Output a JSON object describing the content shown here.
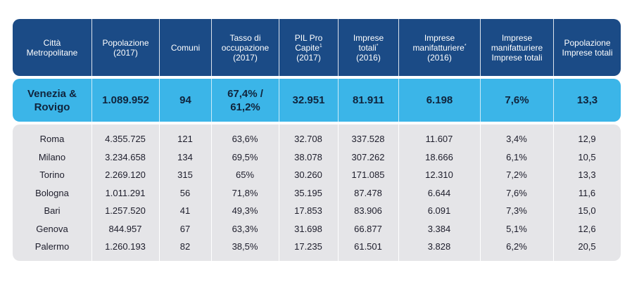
{
  "header": {
    "col1": [
      "Città",
      "Metropolitane"
    ],
    "col2": [
      "Popolazione",
      "(2017)"
    ],
    "col3": [
      "Comuni"
    ],
    "col4": [
      "Tasso di",
      "occupazione",
      "(2017)"
    ],
    "col5_l1": "PIL Pro",
    "col5_l2": "Capite",
    "col5_sup": "1",
    "col5_l3": "(2017)",
    "col6_l1": "Imprese",
    "col6_l2": "totali",
    "col6_sup": "*",
    "col6_l3": "(2016)",
    "col7_l1": "Imprese",
    "col7_l2": "manifatturiere",
    "col7_sup": "*",
    "col7_l3": "(2016)",
    "col8": [
      "Imprese",
      "manifatturiere",
      "Imprese totali"
    ],
    "col9": [
      "Popolazione",
      "Imprese totali"
    ]
  },
  "highlight": {
    "city_l1": "Venezia &",
    "city_l2": "Rovigo",
    "popolazione": "1.089.952",
    "comuni": "94",
    "tasso_l1": "67,4% /",
    "tasso_l2": "61,2%",
    "pil": "32.951",
    "imprese_totali": "81.911",
    "imprese_manifatturiere": "6.198",
    "ratio_manif": "7,6%",
    "ratio_pop": "13,3"
  },
  "rows": [
    [
      "Roma",
      "4.355.725",
      "121",
      "63,6%",
      "32.708",
      "337.528",
      "11.607",
      "3,4%",
      "12,9"
    ],
    [
      "Milano",
      "3.234.658",
      "134",
      "69,5%",
      "38.078",
      "307.262",
      "18.666",
      "6,1%",
      "10,5"
    ],
    [
      "Torino",
      "2.269.120",
      "315",
      "65%",
      "30.260",
      "171.085",
      "12.310",
      "7,2%",
      "13,3"
    ],
    [
      "Bologna",
      "1.011.291",
      "56",
      "71,8%",
      "35.195",
      "87.478",
      "6.644",
      "7,6%",
      "11,6"
    ],
    [
      "Bari",
      "1.257.520",
      "41",
      "49,3%",
      "17.853",
      "83.906",
      "6.091",
      "7,3%",
      "15,0"
    ],
    [
      "Genova",
      "844.957",
      "67",
      "63,3%",
      "31.698",
      "66.877",
      "3.384",
      "5,1%",
      "12,6"
    ],
    [
      "Palermo",
      "1.260.193",
      "82",
      "38,5%",
      "17.235",
      "61.501",
      "3.828",
      "6,2%",
      "20,5"
    ]
  ]
}
